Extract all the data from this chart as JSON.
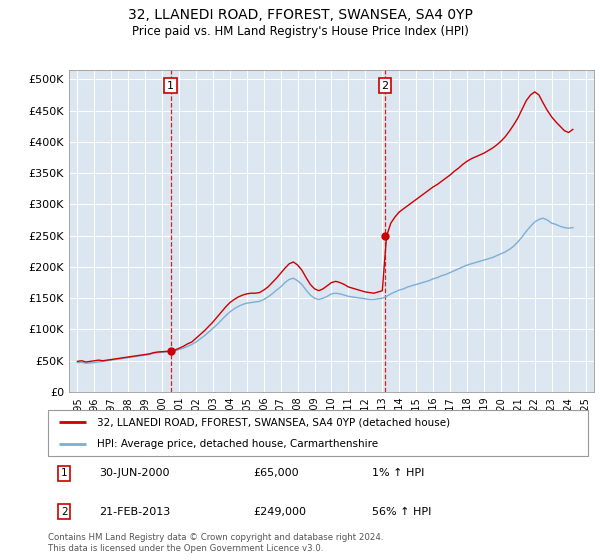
{
  "title": "32, LLANEDI ROAD, FFOREST, SWANSEA, SA4 0YP",
  "subtitle": "Price paid vs. HM Land Registry's House Price Index (HPI)",
  "ylabel_ticks": [
    "£0",
    "£50K",
    "£100K",
    "£150K",
    "£200K",
    "£250K",
    "£300K",
    "£350K",
    "£400K",
    "£450K",
    "£500K"
  ],
  "ytick_vals": [
    0,
    50000,
    100000,
    150000,
    200000,
    250000,
    300000,
    350000,
    400000,
    450000,
    500000
  ],
  "ylim": [
    0,
    515000
  ],
  "xlim_start": 1994.5,
  "xlim_end": 2025.5,
  "background_color": "#dce6f1",
  "plot_bg_color": "#dce6f1",
  "red_line_color": "#cc0000",
  "blue_line_color": "#7bafd4",
  "marker1_year": 2000.5,
  "marker2_year": 2013.15,
  "marker1_price": 65000,
  "marker2_price": 249000,
  "legend_line1": "32, LLANEDI ROAD, FFOREST, SWANSEA, SA4 0YP (detached house)",
  "legend_line2": "HPI: Average price, detached house, Carmarthenshire",
  "annotation1_label": "1",
  "annotation1_date": "30-JUN-2000",
  "annotation1_price": "£65,000",
  "annotation1_hpi": "1% ↑ HPI",
  "annotation2_label": "2",
  "annotation2_date": "21-FEB-2013",
  "annotation2_price": "£249,000",
  "annotation2_hpi": "56% ↑ HPI",
  "footer": "Contains HM Land Registry data © Crown copyright and database right 2024.\nThis data is licensed under the Open Government Licence v3.0.",
  "hpi_years": [
    1995.0,
    1995.25,
    1995.5,
    1995.75,
    1996.0,
    1996.25,
    1996.5,
    1996.75,
    1997.0,
    1997.25,
    1997.5,
    1997.75,
    1998.0,
    1998.25,
    1998.5,
    1998.75,
    1999.0,
    1999.25,
    1999.5,
    1999.75,
    2000.0,
    2000.25,
    2000.5,
    2000.75,
    2001.0,
    2001.25,
    2001.5,
    2001.75,
    2002.0,
    2002.25,
    2002.5,
    2002.75,
    2003.0,
    2003.25,
    2003.5,
    2003.75,
    2004.0,
    2004.25,
    2004.5,
    2004.75,
    2005.0,
    2005.25,
    2005.5,
    2005.75,
    2006.0,
    2006.25,
    2006.5,
    2006.75,
    2007.0,
    2007.25,
    2007.5,
    2007.75,
    2008.0,
    2008.25,
    2008.5,
    2008.75,
    2009.0,
    2009.25,
    2009.5,
    2009.75,
    2010.0,
    2010.25,
    2010.5,
    2010.75,
    2011.0,
    2011.25,
    2011.5,
    2011.75,
    2012.0,
    2012.25,
    2012.5,
    2012.75,
    2013.0,
    2013.25,
    2013.5,
    2013.75,
    2014.0,
    2014.25,
    2014.5,
    2014.75,
    2015.0,
    2015.25,
    2015.5,
    2015.75,
    2016.0,
    2016.25,
    2016.5,
    2016.75,
    2017.0,
    2017.25,
    2017.5,
    2017.75,
    2018.0,
    2018.25,
    2018.5,
    2018.75,
    2019.0,
    2019.25,
    2019.5,
    2019.75,
    2020.0,
    2020.25,
    2020.5,
    2020.75,
    2021.0,
    2021.25,
    2021.5,
    2021.75,
    2022.0,
    2022.25,
    2022.5,
    2022.75,
    2023.0,
    2023.25,
    2023.5,
    2023.75,
    2024.0,
    2024.25
  ],
  "hpi_values": [
    47000,
    47500,
    46000,
    46500,
    47000,
    48000,
    49000,
    50000,
    51000,
    52000,
    53000,
    54000,
    55000,
    56000,
    57000,
    58000,
    59000,
    60000,
    62000,
    63000,
    63500,
    64000,
    65000,
    66000,
    68000,
    70000,
    73000,
    76000,
    80000,
    85000,
    90000,
    96000,
    102000,
    108000,
    115000,
    122000,
    128000,
    133000,
    137000,
    140000,
    142000,
    143000,
    144000,
    145000,
    148000,
    152000,
    157000,
    163000,
    168000,
    175000,
    180000,
    182000,
    178000,
    172000,
    163000,
    155000,
    150000,
    148000,
    150000,
    153000,
    157000,
    158000,
    157000,
    155000,
    153000,
    152000,
    151000,
    150000,
    149000,
    148000,
    148000,
    149000,
    150000,
    153000,
    157000,
    160000,
    163000,
    165000,
    168000,
    170000,
    172000,
    174000,
    176000,
    178000,
    181000,
    183000,
    186000,
    188000,
    191000,
    194000,
    197000,
    200000,
    203000,
    205000,
    207000,
    209000,
    211000,
    213000,
    215000,
    218000,
    221000,
    224000,
    228000,
    233000,
    240000,
    248000,
    257000,
    265000,
    272000,
    276000,
    278000,
    275000,
    270000,
    268000,
    265000,
    263000,
    262000,
    263000
  ],
  "red_years": [
    1995.0,
    1995.25,
    1995.5,
    1995.75,
    1996.0,
    1996.25,
    1996.5,
    1996.75,
    1997.0,
    1997.25,
    1997.5,
    1997.75,
    1998.0,
    1998.25,
    1998.5,
    1998.75,
    1999.0,
    1999.25,
    1999.5,
    1999.75,
    2000.0,
    2000.25,
    2000.5,
    2000.75,
    2001.0,
    2001.25,
    2001.5,
    2001.75,
    2002.0,
    2002.25,
    2002.5,
    2002.75,
    2003.0,
    2003.25,
    2003.5,
    2003.75,
    2004.0,
    2004.25,
    2004.5,
    2004.75,
    2005.0,
    2005.25,
    2005.5,
    2005.75,
    2006.0,
    2006.25,
    2006.5,
    2006.75,
    2007.0,
    2007.25,
    2007.5,
    2007.75,
    2008.0,
    2008.25,
    2008.5,
    2008.75,
    2009.0,
    2009.25,
    2009.5,
    2009.75,
    2010.0,
    2010.25,
    2010.5,
    2010.75,
    2011.0,
    2011.25,
    2011.5,
    2011.75,
    2012.0,
    2012.25,
    2012.5,
    2012.75,
    2013.0,
    2013.25,
    2013.5,
    2013.75,
    2014.0,
    2014.25,
    2014.5,
    2014.75,
    2015.0,
    2015.25,
    2015.5,
    2015.75,
    2016.0,
    2016.25,
    2016.5,
    2016.75,
    2017.0,
    2017.25,
    2017.5,
    2017.75,
    2018.0,
    2018.25,
    2018.5,
    2018.75,
    2019.0,
    2019.25,
    2019.5,
    2019.75,
    2020.0,
    2020.25,
    2020.5,
    2020.75,
    2021.0,
    2021.25,
    2021.5,
    2021.75,
    2022.0,
    2022.25,
    2022.5,
    2022.75,
    2023.0,
    2023.25,
    2023.5,
    2023.75,
    2024.0,
    2024.25
  ],
  "red_values": [
    49000,
    50000,
    48000,
    49000,
    50000,
    51000,
    50000,
    51000,
    52000,
    53000,
    54000,
    55000,
    56000,
    57000,
    58000,
    59000,
    60000,
    61000,
    63000,
    64000,
    64500,
    65000,
    65000,
    67000,
    70000,
    73000,
    77000,
    80000,
    86000,
    92000,
    98000,
    105000,
    112000,
    120000,
    128000,
    136000,
    143000,
    148000,
    152000,
    155000,
    157000,
    158000,
    158000,
    159000,
    163000,
    168000,
    175000,
    182000,
    190000,
    198000,
    205000,
    208000,
    203000,
    195000,
    183000,
    172000,
    165000,
    162000,
    165000,
    170000,
    175000,
    177000,
    175000,
    172000,
    168000,
    166000,
    164000,
    162000,
    160000,
    159000,
    158000,
    160000,
    162000,
    249000,
    270000,
    280000,
    288000,
    293000,
    298000,
    303000,
    308000,
    313000,
    318000,
    323000,
    328000,
    332000,
    337000,
    342000,
    347000,
    353000,
    358000,
    364000,
    369000,
    373000,
    376000,
    379000,
    382000,
    386000,
    390000,
    395000,
    401000,
    408000,
    417000,
    427000,
    438000,
    452000,
    466000,
    475000,
    480000,
    475000,
    462000,
    450000,
    440000,
    432000,
    425000,
    418000,
    415000,
    420000
  ]
}
